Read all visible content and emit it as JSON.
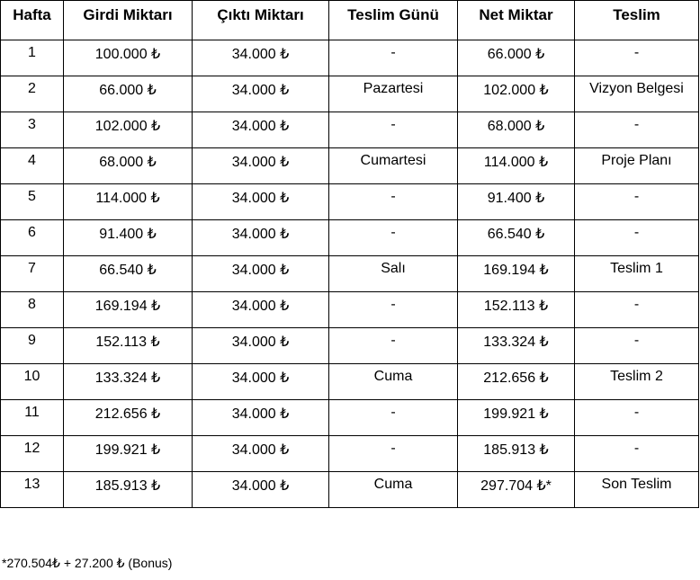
{
  "table": {
    "headers": [
      "Hafta",
      "Girdi Miktarı",
      "Çıktı Miktarı",
      "Teslim Günü",
      "Net Miktar",
      "Teslim"
    ],
    "rows": [
      [
        "1",
        "100.000 ₺",
        "34.000 ₺",
        "-",
        "66.000 ₺",
        "-"
      ],
      [
        "2",
        "66.000 ₺",
        "34.000 ₺",
        "Pazartesi",
        "102.000 ₺",
        "Vizyon Belgesi"
      ],
      [
        "3",
        "102.000 ₺",
        "34.000 ₺",
        "-",
        "68.000 ₺",
        "-"
      ],
      [
        "4",
        "68.000 ₺",
        "34.000 ₺",
        "Cumartesi",
        "114.000 ₺",
        "Proje Planı"
      ],
      [
        "5",
        "114.000 ₺",
        "34.000 ₺",
        "-",
        "91.400 ₺",
        "-"
      ],
      [
        "6",
        "91.400 ₺",
        "34.000 ₺",
        "-",
        "66.540 ₺",
        "-"
      ],
      [
        "7",
        "66.540 ₺",
        "34.000 ₺",
        "Salı",
        "169.194 ₺",
        "Teslim 1"
      ],
      [
        "8",
        "169.194 ₺",
        "34.000 ₺",
        "-",
        "152.113 ₺",
        "-"
      ],
      [
        "9",
        "152.113 ₺",
        "34.000 ₺",
        "-",
        "133.324 ₺",
        "-"
      ],
      [
        "10",
        "133.324 ₺",
        "34.000 ₺",
        "Cuma",
        "212.656 ₺",
        "Teslim 2"
      ],
      [
        "11",
        "212.656 ₺",
        "34.000 ₺",
        "-",
        "199.921 ₺",
        "-"
      ],
      [
        "12",
        "199.921 ₺",
        "34.000 ₺",
        "-",
        "185.913 ₺",
        "-"
      ],
      [
        "13",
        "185.913 ₺",
        "34.000 ₺",
        "Cuma",
        "297.704 ₺*",
        "Son Teslim"
      ]
    ]
  },
  "footnote": "*270.504₺ + 27.200 ₺ (Bonus)"
}
